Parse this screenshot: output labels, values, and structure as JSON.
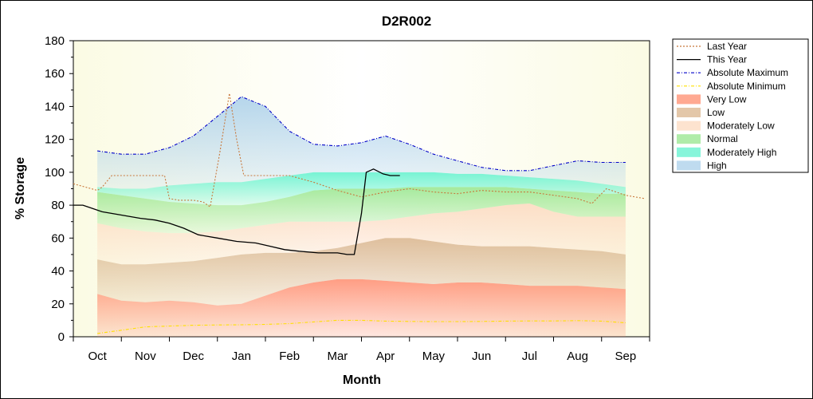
{
  "chart_data": {
    "type": "area",
    "title": "D2R002",
    "xlabel": "Month",
    "ylabel": "% Storage",
    "ylim": [
      0,
      180
    ],
    "yticks": [
      0,
      20,
      40,
      60,
      80,
      100,
      120,
      140,
      160,
      180
    ],
    "xlim": [
      -0.5,
      11.5
    ],
    "categories": [
      "Oct",
      "Nov",
      "Dec",
      "Jan",
      "Feb",
      "Mar",
      "Apr",
      "May",
      "Jun",
      "Jul",
      "Aug",
      "Sep"
    ],
    "legend_position": "right",
    "band_x": [
      0,
      0.5,
      1,
      1.5,
      2,
      2.5,
      3,
      3.5,
      4,
      4.5,
      5,
      5.5,
      6,
      6.5,
      7,
      7.5,
      8,
      8.5,
      9,
      9.5,
      10,
      10.5,
      11
    ],
    "bands": [
      {
        "name": "Very Low",
        "color": "#ff8c6e",
        "top": [
          26,
          22,
          21,
          22,
          21,
          19,
          20,
          25,
          30,
          33,
          35,
          35,
          34,
          33,
          32,
          33,
          33,
          32,
          31,
          31,
          31,
          30,
          29
        ]
      },
      {
        "name": "Low",
        "color": "#d9b48c",
        "top": [
          47,
          44,
          44,
          45,
          46,
          48,
          50,
          51,
          51,
          52,
          54,
          57,
          60,
          60,
          58,
          56,
          55,
          55,
          55,
          54,
          53,
          52,
          50
        ]
      },
      {
        "name": "Moderately Low",
        "color": "#fcd9bf",
        "top": [
          69,
          66,
          64,
          63,
          63,
          64,
          66,
          68,
          70,
          70,
          70,
          70,
          71,
          73,
          75,
          76,
          78,
          80,
          81,
          76,
          73,
          73,
          73
        ]
      },
      {
        "name": "Normal",
        "color": "#96e68c",
        "top": [
          88,
          86,
          84,
          82,
          81,
          80,
          80,
          82,
          85,
          89,
          90,
          90,
          90,
          91,
          91,
          91,
          91,
          91,
          90,
          89,
          88,
          87,
          87
        ]
      },
      {
        "name": "Moderately High",
        "color": "#5ff2cd",
        "top": [
          91,
          90,
          90,
          92,
          93,
          94,
          94,
          96,
          98,
          100,
          100,
          100,
          100,
          100,
          100,
          99,
          99,
          98,
          97,
          96,
          95,
          93,
          91
        ]
      },
      {
        "name": "High",
        "color": "#a9cfea",
        "top": [
          113,
          111,
          111,
          115,
          122,
          134,
          146,
          140,
          125,
          117,
          116,
          118,
          122,
          117,
          111,
          107,
          103,
          101,
          101,
          104,
          107,
          106,
          106
        ]
      }
    ],
    "series": [
      {
        "name": "Last Year",
        "color": "#c8783c",
        "dash": "2,2",
        "x": [
          -0.5,
          -0.25,
          0,
          0.1,
          0.3,
          0.6,
          1,
          1.4,
          1.5,
          1.7,
          2,
          2.2,
          2.35,
          2.55,
          2.75,
          2.9,
          3.05,
          3.25,
          3.5,
          4,
          4.5,
          5,
          5.5,
          6,
          6.5,
          7,
          7.5,
          8,
          8.5,
          9,
          9.5,
          10,
          10.3,
          10.6,
          11,
          11.2,
          11.4
        ],
        "y": [
          93,
          91,
          89,
          91,
          98,
          98,
          98,
          98,
          84,
          83,
          83,
          82,
          79,
          112,
          148,
          120,
          98,
          98,
          98,
          98,
          94,
          89,
          85,
          88,
          90,
          88,
          87,
          89,
          88,
          88,
          86,
          84,
          81,
          90,
          86,
          85,
          84
        ]
      },
      {
        "name": "This Year",
        "color": "#000000",
        "dash": "",
        "x": [
          -0.5,
          -0.3,
          -0.1,
          0.1,
          0.5,
          0.9,
          1.2,
          1.5,
          1.8,
          2.1,
          2.5,
          2.9,
          3.3,
          3.6,
          3.9,
          4.2,
          4.6,
          5,
          5.2,
          5.35,
          5.5,
          5.6,
          5.75,
          5.95,
          6.1,
          6.3
        ],
        "y": [
          80,
          80,
          78,
          76,
          74,
          72,
          71,
          69,
          66,
          62,
          60,
          58,
          57,
          55,
          53,
          52,
          51,
          51,
          50,
          50,
          75,
          100,
          102,
          99,
          98,
          98
        ]
      },
      {
        "name": "Absolute Maximum",
        "color": "#0000c8",
        "dash": "4,2,1,2",
        "x": [
          0,
          0.5,
          1,
          1.5,
          2,
          2.5,
          3,
          3.5,
          4,
          4.5,
          5,
          5.5,
          6,
          6.5,
          7,
          7.5,
          8,
          8.5,
          9,
          9.5,
          10,
          10.5,
          11
        ],
        "y": [
          113,
          111,
          111,
          115,
          122,
          134,
          146,
          140,
          125,
          117,
          116,
          118,
          122,
          117,
          111,
          107,
          103,
          101,
          101,
          104,
          107,
          106,
          106
        ]
      },
      {
        "name": "Absolute Minimum",
        "color": "#ffe100",
        "dash": "4,2,1,2",
        "x": [
          0,
          0.5,
          1,
          1.5,
          2,
          2.5,
          3,
          3.5,
          4,
          4.5,
          5,
          5.5,
          6,
          6.5,
          7,
          7.5,
          8,
          8.5,
          9,
          9.5,
          10,
          10.5,
          11
        ],
        "y": [
          2,
          4,
          6,
          6.5,
          7,
          7.2,
          7.3,
          7.5,
          8,
          9,
          10,
          10,
          9.5,
          9.3,
          9.2,
          9.2,
          9.3,
          9.5,
          9.6,
          9.6,
          9.8,
          9.5,
          8.5
        ]
      }
    ]
  }
}
